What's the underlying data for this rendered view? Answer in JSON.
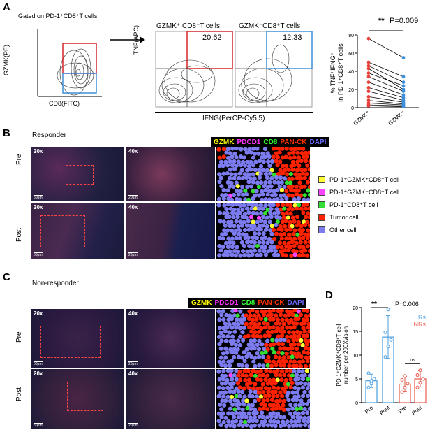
{
  "panels": {
    "a": "A",
    "b": "B",
    "c": "C",
    "d": "D"
  },
  "flow": {
    "gate_title": "Gated on PD-1⁺CD8⁺T cells",
    "gzmk_axis": "GZMK(PE)",
    "cd8_axis": "CD8(FITC)",
    "plot1_title": "GZMK⁺ CD8⁺T cells",
    "plot2_title": "GZMK⁻CD8⁺T cells",
    "tnf_axis": "TNF(APC)",
    "ifng_axis": "IFNG(PerCP-Cy5.5)",
    "plot1_value": "20.62",
    "plot2_value": "12.33"
  },
  "paired_plot": {
    "ylabel_line1": "% TNF⁺IFNG⁺",
    "ylabel_line2": "in PD-1⁺CD8⁺T cells",
    "stars": "**",
    "pvalue": "P=0.009",
    "x_labels": [
      "GZMK⁺",
      "GZMK⁻"
    ],
    "y_ticks": [
      "0",
      "20",
      "40",
      "60",
      "80"
    ]
  },
  "panel_b": {
    "group": "Responder",
    "row_pre": "Pre",
    "row_post": "Post",
    "mag_20x": "20x",
    "mag_40x": "40x",
    "scale_50": "50μm",
    "scale_20": "20μm"
  },
  "panel_c": {
    "group": "Non-responder",
    "row_pre": "Pre",
    "row_post": "Post",
    "mag_20x": "20x",
    "mag_40x": "40x",
    "scale_50": "50μm",
    "scale_20": "20μm"
  },
  "stains": {
    "gzmk": "GZMK",
    "pdcd1": "PDCD1",
    "cd8": "CD8",
    "panck": "PAN-CK",
    "dapi": "DAPI",
    "colors": {
      "gzmk": "#ffff00",
      "pdcd1": "#ff33ff",
      "cd8": "#33ff33",
      "panck": "#ff3300",
      "dapi": "#6a6aff"
    }
  },
  "cell_legend": [
    {
      "label": "PD-1⁺GZMK⁺CD8⁺T cell",
      "color": "#ffff33"
    },
    {
      "label": "PD-1⁺GZMK⁻CD8⁺T cell",
      "color": "#ff44ff"
    },
    {
      "label": "PD-1⁻CD8⁺T cell",
      "color": "#33dd33"
    },
    {
      "label": "Tumor cell",
      "color": "#ff2200"
    },
    {
      "label": "Other cell",
      "color": "#7c7cf0"
    }
  ],
  "chart_data": [
    {
      "type": "line",
      "title": "",
      "ylabel": "% TNF⁺IFNG⁺ in PD-1⁺CD8⁺T cells",
      "categories": [
        "GZMK⁺",
        "GZMK⁻"
      ],
      "ylim": [
        0,
        80
      ],
      "paired_values": [
        [
          76,
          55
        ],
        [
          50,
          34
        ],
        [
          46,
          28
        ],
        [
          43,
          20
        ],
        [
          38,
          24
        ],
        [
          34,
          18
        ],
        [
          28,
          14
        ],
        [
          22,
          11
        ],
        [
          18,
          8
        ],
        [
          12,
          6
        ],
        [
          8,
          4
        ],
        [
          5,
          3
        ],
        [
          3,
          2
        ],
        [
          2,
          1
        ]
      ],
      "colors": {
        "GZMK⁺": "#e8413b",
        "GZMK⁻": "#3d8fd9"
      },
      "annotation": "** P=0.009"
    },
    {
      "type": "bar",
      "title": "",
      "ylabel": "PD-1⁺GZMK⁺CD8⁺T cell number per 200Xvision",
      "categories": [
        "Pre",
        "Post",
        "Pre",
        "Post"
      ],
      "ylim": [
        0,
        20
      ],
      "y_ticks": [
        "0",
        "5",
        "10",
        "15",
        "20"
      ],
      "series": [
        {
          "name": "Rs",
          "color": "#4a9ee0",
          "means": [
            4.6,
            13.8
          ],
          "errors": [
            1.4,
            4.5
          ],
          "points": [
            [
              3.2,
              4.0,
              5.0,
              6.2,
              4.6
            ],
            [
              9.6,
              11.8,
              13.2,
              14.8,
              19.6
            ]
          ]
        },
        {
          "name": "NRs",
          "color": "#e85a4f",
          "means": [
            3.9,
            5.0
          ],
          "errors": [
            1.6,
            1.7
          ],
          "points": [
            [
              2.2,
              3.2,
              4.0,
              4.8,
              5.6
            ],
            [
              3.2,
              4.2,
              5.0,
              5.8,
              6.8
            ]
          ]
        }
      ],
      "annotations": [
        "** P=0.006",
        "ns"
      ],
      "legend": [
        "Rs",
        "NRs"
      ]
    }
  ]
}
